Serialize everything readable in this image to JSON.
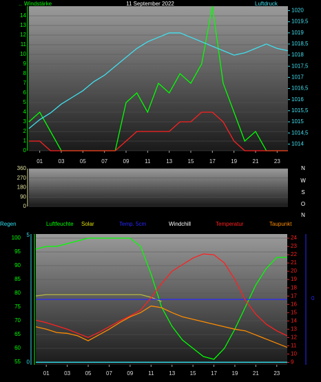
{
  "chart_data": [
    {
      "type": "line",
      "title": "11 September 2022",
      "note": "..",
      "ylabel": "Windstärke",
      "y2label": "Luftdruck",
      "x": [
        0,
        1,
        2,
        3,
        4,
        5,
        6,
        7,
        8,
        9,
        10,
        11,
        12,
        13,
        14,
        15,
        16,
        17,
        18,
        19,
        20,
        21,
        22,
        23,
        24
      ],
      "xlim": [
        0,
        24
      ],
      "xticks": [
        {
          "value": 1,
          "label": "01"
        },
        {
          "value": 3,
          "label": "03"
        },
        {
          "value": 5,
          "label": "05"
        },
        {
          "value": 7,
          "label": "07"
        },
        {
          "value": 9,
          "label": "09"
        },
        {
          "value": 11,
          "label": "11"
        },
        {
          "value": 13,
          "label": "13"
        },
        {
          "value": 15,
          "label": "15"
        },
        {
          "value": 17,
          "label": "17"
        },
        {
          "value": 19,
          "label": "19"
        },
        {
          "value": 21,
          "label": "21"
        },
        {
          "value": 23,
          "label": "23"
        }
      ],
      "ylim": [
        0,
        15
      ],
      "yticks": [
        0,
        1,
        2,
        3,
        4,
        5,
        6,
        7,
        8,
        9,
        10,
        11,
        12,
        13,
        14
      ],
      "y2lim": [
        1013.7,
        1020.2
      ],
      "y2ticks": [
        1014,
        {
          "value": 1014.5,
          "label": "1014,5"
        },
        1015,
        {
          "value": 1015.5,
          "label": "1015,5"
        },
        1016,
        {
          "value": 1016.5,
          "label": "1016,5"
        },
        1017,
        {
          "value": 1017.5,
          "label": "1017,5"
        },
        1018,
        {
          "value": 1018.5,
          "label": "1018,5"
        },
        1019,
        {
          "value": 1019.5,
          "label": "1019,5"
        },
        1020
      ],
      "series": [
        {
          "color": "#00ff00",
          "values": [
            3,
            4,
            2,
            0,
            0,
            0,
            0,
            0,
            0,
            5,
            6,
            4,
            7,
            6,
            8,
            7,
            9,
            15,
            7,
            4,
            1,
            2,
            0,
            0,
            0
          ]
        },
        {
          "color": "#ff2020",
          "values": [
            1,
            1,
            0,
            0,
            0,
            0,
            0,
            0,
            0,
            1,
            2,
            2,
            2,
            2,
            3,
            3,
            4,
            4,
            3,
            1,
            0,
            0,
            0,
            0,
            0
          ]
        },
        {
          "color": "#40e0f0",
          "axis": "y2",
          "values": [
            1014.7,
            1015.1,
            1015.4,
            1015.8,
            1016.1,
            1016.4,
            1016.8,
            1017.1,
            1017.5,
            1017.9,
            1018.3,
            1018.6,
            1018.8,
            1019.0,
            1019.0,
            1018.8,
            1018.6,
            1018.4,
            1018.2,
            1018.0,
            1018.1,
            1018.3,
            1018.5,
            1018.3,
            1018.2
          ]
        }
      ]
    },
    {
      "type": "line",
      "ylim": [
        0,
        360
      ],
      "yticks": [
        0,
        90,
        180,
        270,
        360
      ],
      "compass_labels": [
        "N",
        "W",
        "S",
        "O",
        "N"
      ],
      "series": []
    },
    {
      "type": "line",
      "temp5_label": "0",
      "x": [
        0,
        1,
        2,
        3,
        4,
        5,
        6,
        7,
        8,
        9,
        10,
        11,
        12,
        13,
        14,
        15,
        16,
        17,
        18,
        19,
        20,
        21,
        22,
        23,
        24
      ],
      "xlim": [
        0,
        24
      ],
      "xticks": [
        {
          "value": 1,
          "label": "01"
        },
        {
          "value": 3,
          "label": "03"
        },
        {
          "value": 5,
          "label": "05"
        },
        {
          "value": 7,
          "label": "07"
        },
        {
          "value": 9,
          "label": "09"
        },
        {
          "value": 11,
          "label": "11"
        },
        {
          "value": 13,
          "label": "13"
        },
        {
          "value": 15,
          "label": "15"
        },
        {
          "value": 17,
          "label": "17"
        },
        {
          "value": 19,
          "label": "19"
        },
        {
          "value": 21,
          "label": "21"
        },
        {
          "value": 23,
          "label": "23"
        }
      ],
      "ylim": [
        54,
        101.5
      ],
      "yticks": [
        55,
        60,
        65,
        70,
        75,
        80,
        85,
        90,
        95,
        100
      ],
      "y2lim": [
        8.7,
        24.5
      ],
      "y2ticks": [
        9,
        10,
        11,
        12,
        13,
        14,
        15,
        16,
        17,
        18,
        19,
        20,
        21,
        22,
        23,
        24
      ],
      "rainlim": [
        -0.1,
        5.05
      ],
      "rainticks": [
        0,
        5
      ],
      "series": [
        {
          "name": "Regen",
          "color": "#30e0f0",
          "axis": "rain",
          "values": [
            0,
            0,
            0,
            0,
            0,
            0,
            0,
            0,
            0,
            0,
            0,
            0,
            0,
            0,
            0,
            0,
            0,
            0,
            0,
            0,
            0,
            0,
            0,
            0,
            0
          ]
        },
        {
          "name": "Luftfeuchte",
          "color": "#00ff00",
          "values": [
            96,
            97,
            97,
            98,
            99,
            100,
            100,
            100,
            100,
            100,
            97,
            87,
            75,
            68,
            63,
            60,
            57,
            56,
            60,
            67,
            75,
            83,
            89,
            93,
            93
          ]
        },
        {
          "name": "Solar",
          "color": "#b8b840",
          "values": [
            79,
            79.5,
            79.5,
            79.5,
            79.5,
            79.5,
            79.5,
            79.5,
            79.5,
            79.5,
            79.5,
            78.5,
            77,
            null,
            null,
            null,
            null,
            null,
            null,
            null,
            null,
            null,
            null,
            null,
            null
          ]
        },
        {
          "name": "Temp. 5cm",
          "color": "#2828ff",
          "axis": "y2",
          "values": [
            16.6,
            16.6,
            16.6,
            16.6,
            16.6,
            16.6,
            16.6,
            16.6,
            16.6,
            16.6,
            16.6,
            16.6,
            16.6,
            16.6,
            16.6,
            16.6,
            16.6,
            16.6,
            16.6,
            16.6,
            16.6,
            16.6,
            16.6,
            16.6,
            16.6
          ]
        },
        {
          "name": "Windchill",
          "color": "#ffffff",
          "axis": "y2",
          "values": [
            null,
            null,
            null,
            null,
            null,
            null,
            null,
            null,
            null,
            null,
            null,
            null,
            null,
            null,
            null,
            null,
            null,
            null,
            null,
            null,
            null,
            null,
            null,
            null,
            null
          ]
        },
        {
          "name": "Temperatur",
          "color": "#ff2020",
          "axis": "y2",
          "values": [
            14.1,
            13.8,
            13.4,
            13.0,
            12.5,
            12.0,
            12.6,
            13.3,
            14.0,
            14.6,
            15.3,
            16.8,
            18.5,
            20.0,
            20.8,
            21.6,
            22.1,
            22.0,
            21.0,
            19.0,
            16.5,
            14.8,
            13.6,
            12.8,
            12.2
          ]
        },
        {
          "name": "Taupunkt",
          "color": "#ff8c00",
          "axis": "y2",
          "values": [
            13.3,
            13.0,
            12.6,
            12.5,
            12.2,
            11.6,
            12.3,
            13.0,
            13.8,
            14.5,
            15.0,
            15.8,
            15.6,
            15.0,
            14.5,
            14.2,
            13.9,
            13.6,
            13.3,
            13.0,
            12.8,
            12.3,
            11.8,
            11.3,
            10.8
          ]
        }
      ]
    }
  ]
}
